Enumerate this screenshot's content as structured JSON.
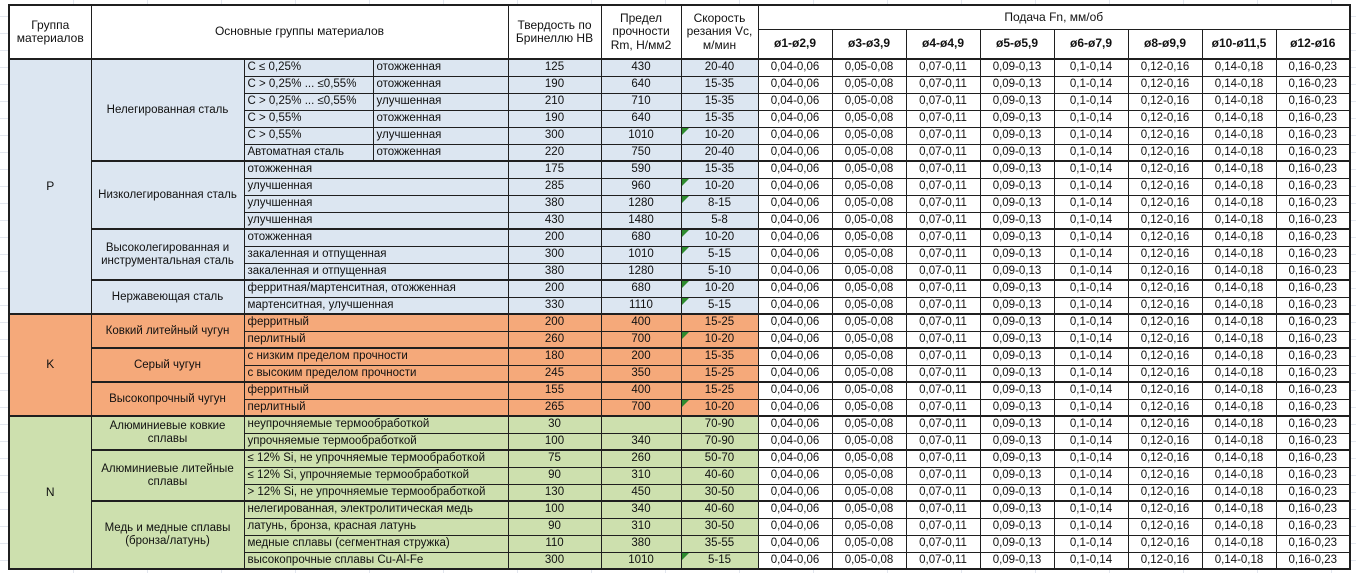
{
  "table": {
    "header": {
      "col_group": "Группа материалов",
      "col_main": "Основные группы материалов",
      "col_hb": "Твердость по Бринеллю НВ",
      "col_rm": "Предел прочности Rm, Н/мм2",
      "col_vc": "Скорость резания Vc, м/мин",
      "feed_title": "Подача Fn, мм/об",
      "feed_cols": [
        "ø1-ø2,9",
        "ø3-ø3,9",
        "ø4-ø4,9",
        "ø5-ø5,9",
        "ø6-ø7,9",
        "ø8-ø9,9",
        "ø10-ø11,5",
        "ø12-ø16"
      ]
    },
    "feed_values": [
      "0,04-0,06",
      "0,05-0,08",
      "0,07-0,11",
      "0,09-0,13",
      "0,1-0,14",
      "0,12-0,16",
      "0,14-0,18",
      "0,16-0,23"
    ],
    "marker_color": "#2e8b2e",
    "groups": [
      {
        "code": "P",
        "color": "#dce6f1",
        "subgroups": [
          {
            "name": "Нелегированная сталь",
            "rows": [
              {
                "condition": "C ≤ 0,25%",
                "state": "отожженная",
                "hb": "125",
                "rm": "430",
                "vc": "20-40",
                "marker": false
              },
              {
                "condition": "C > 0,25% ... ≤0,55%",
                "state": "отожженная",
                "hb": "190",
                "rm": "640",
                "vc": "15-35",
                "marker": false
              },
              {
                "condition": "C > 0,25% ... ≤0,55%",
                "state": "улучшенная",
                "hb": "210",
                "rm": "710",
                "vc": "15-35",
                "marker": false
              },
              {
                "condition": "C > 0,55%",
                "state": "отожженная",
                "hb": "190",
                "rm": "640",
                "vc": "15-35",
                "marker": false
              },
              {
                "condition": "C > 0,55%",
                "state": "улучшенная",
                "hb": "300",
                "rm": "1010",
                "vc": "10-20",
                "marker": true
              },
              {
                "condition": "Автоматная сталь",
                "state": "отожженная",
                "hb": "220",
                "rm": "750",
                "vc": "20-40",
                "marker": false
              }
            ]
          },
          {
            "name": "Низколегированная сталь",
            "rows": [
              {
                "detail": "отожженная",
                "hb": "175",
                "rm": "590",
                "vc": "15-35",
                "marker": false
              },
              {
                "detail": "улучшенная",
                "hb": "285",
                "rm": "960",
                "vc": "10-20",
                "marker": true
              },
              {
                "detail": "улучшенная",
                "hb": "380",
                "rm": "1280",
                "vc": "8-15",
                "marker": true
              },
              {
                "detail": "улучшенная",
                "hb": "430",
                "rm": "1480",
                "vc": "5-8",
                "marker": false
              }
            ]
          },
          {
            "name": "Высоколегированная и инструментальная сталь",
            "rows": [
              {
                "detail": "отожженная",
                "hb": "200",
                "rm": "680",
                "vc": "10-20",
                "marker": true
              },
              {
                "detail": "закаленная и отпущенная",
                "hb": "300",
                "rm": "1010",
                "vc": "5-15",
                "marker": true
              },
              {
                "detail": "закаленная и отпущенная",
                "hb": "380",
                "rm": "1280",
                "vc": "5-10",
                "marker": false
              }
            ]
          },
          {
            "name": "Нержавеющая сталь",
            "rows": [
              {
                "detail": "ферритная/мартенситная, отожженная",
                "hb": "200",
                "rm": "680",
                "vc": "10-20",
                "marker": true
              },
              {
                "detail": "мартенситная, улучшенная",
                "hb": "330",
                "rm": "1110",
                "vc": "5-15",
                "marker": true
              }
            ]
          }
        ]
      },
      {
        "code": "K",
        "color": "#f5a97a",
        "subgroups": [
          {
            "name": "Ковкий литейный чугун",
            "rows": [
              {
                "detail": "ферритный",
                "hb": "200",
                "rm": "400",
                "vc": "15-25",
                "marker": false
              },
              {
                "detail": "перлитный",
                "hb": "260",
                "rm": "700",
                "vc": "10-20",
                "marker": true
              }
            ]
          },
          {
            "name": "Серый чугун",
            "rows": [
              {
                "detail": "с низким пределом прочности",
                "hb": "180",
                "rm": "200",
                "vc": "15-35",
                "marker": false
              },
              {
                "detail": "с высоким пределом прочности",
                "hb": "245",
                "rm": "350",
                "vc": "15-25",
                "marker": false
              }
            ]
          },
          {
            "name": "Высокопрочный чугун",
            "rows": [
              {
                "detail": "ферритный",
                "hb": "155",
                "rm": "400",
                "vc": "15-25",
                "marker": false
              },
              {
                "detail": "перлитный",
                "hb": "265",
                "rm": "700",
                "vc": "10-20",
                "marker": true
              }
            ]
          }
        ]
      },
      {
        "code": "N",
        "color": "#cde0ae",
        "subgroups": [
          {
            "name": "Алюминиевые ковкие сплавы",
            "rows": [
              {
                "detail": "неупрочняемые термообработкой",
                "hb": "30",
                "rm": "",
                "vc": "70-90",
                "marker": false
              },
              {
                "detail": "упрочняемые термообработкой",
                "hb": "100",
                "rm": "340",
                "vc": "70-90",
                "marker": false
              }
            ]
          },
          {
            "name": "Алюминиевые литейные сплавы",
            "rows": [
              {
                "detail": "≤ 12% Si, не упрочняемые термообработкой",
                "hb": "75",
                "rm": "260",
                "vc": "50-70",
                "marker": false
              },
              {
                "detail": "≤ 12% Si, упрочняемые термообработкой",
                "hb": "90",
                "rm": "310",
                "vc": "40-60",
                "marker": false
              },
              {
                "detail": "> 12% Si, не упрочняемые термообработкой",
                "hb": "130",
                "rm": "450",
                "vc": "30-50",
                "marker": false
              }
            ]
          },
          {
            "name": "Медь и медные сплавы (бронза/латунь)",
            "rows": [
              {
                "detail": "нелегированная, электролитическая медь",
                "hb": "100",
                "rm": "340",
                "vc": "40-60",
                "marker": false
              },
              {
                "detail": "латунь, бронза, красная латунь",
                "hb": "90",
                "rm": "310",
                "vc": "30-50",
                "marker": false
              },
              {
                "detail": "медные сплавы (сегментная стружка)",
                "hb": "110",
                "rm": "380",
                "vc": "35-55",
                "marker": false
              },
              {
                "detail": "высокопрочные сплавы Cu-Al-Fe",
                "hb": "300",
                "rm": "1010",
                "vc": "5-15",
                "marker": true
              }
            ]
          }
        ]
      }
    ]
  }
}
